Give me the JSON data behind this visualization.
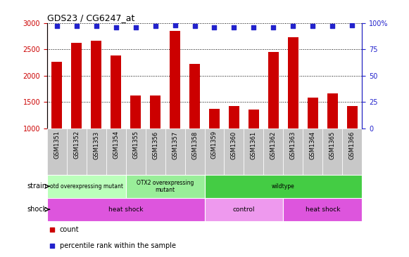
{
  "title": "GDS23 / CG6247_at",
  "samples": [
    "GSM1351",
    "GSM1352",
    "GSM1353",
    "GSM1354",
    "GSM1355",
    "GSM1356",
    "GSM1357",
    "GSM1358",
    "GSM1359",
    "GSM1360",
    "GSM1361",
    "GSM1362",
    "GSM1363",
    "GSM1364",
    "GSM1365",
    "GSM1366"
  ],
  "counts": [
    2260,
    2620,
    2660,
    2390,
    1630,
    1630,
    2850,
    2230,
    1370,
    1420,
    1360,
    2450,
    2730,
    1590,
    1660,
    1430
  ],
  "percentiles": [
    97,
    97,
    97,
    96,
    96,
    97,
    98,
    97,
    96,
    96,
    96,
    96,
    97,
    97,
    97,
    98
  ],
  "bar_color": "#cc0000",
  "dot_color": "#2222cc",
  "ylim_left": [
    1000,
    3000
  ],
  "ylim_right": [
    0,
    100
  ],
  "yticks_left": [
    1000,
    1500,
    2000,
    2500,
    3000
  ],
  "yticks_right": [
    0,
    25,
    50,
    75,
    100
  ],
  "yright_labels": [
    "0",
    "25",
    "50",
    "75",
    "100%"
  ],
  "strain_labels": [
    {
      "text": "otd overexpressing mutant",
      "start": 0,
      "end": 4,
      "color": "#bbffbb"
    },
    {
      "text": "OTX2 overexpressing\nmutant",
      "start": 4,
      "end": 8,
      "color": "#99ee99"
    },
    {
      "text": "wildtype",
      "start": 8,
      "end": 16,
      "color": "#44cc44"
    }
  ],
  "shock_labels": [
    {
      "text": "heat shock",
      "start": 0,
      "end": 8,
      "color": "#dd55dd"
    },
    {
      "text": "control",
      "start": 8,
      "end": 12,
      "color": "#ee99ee"
    },
    {
      "text": "heat shock",
      "start": 12,
      "end": 16,
      "color": "#dd55dd"
    }
  ],
  "legend_items": [
    {
      "label": "count",
      "color": "#cc0000"
    },
    {
      "label": "percentile rank within the sample",
      "color": "#2222cc"
    }
  ],
  "bg_color": "#ffffff",
  "tick_color_left": "#cc0000",
  "tick_color_right": "#2222cc",
  "xtick_bg": "#c8c8c8",
  "grid_color": "#000000",
  "bar_width": 0.55
}
